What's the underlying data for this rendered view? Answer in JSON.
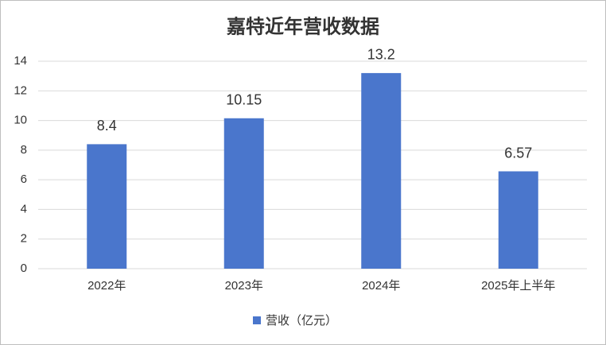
{
  "chart_data": {
    "type": "bar",
    "title": "嘉特近年营收数据",
    "categories": [
      "2022年",
      "2023年",
      "2024年",
      "2025年上半年"
    ],
    "series": [
      {
        "name": "营收（亿元）",
        "color": "#4a76cc",
        "values": [
          8.4,
          10.15,
          13.2,
          6.57
        ]
      }
    ],
    "ylim": [
      0,
      14
    ],
    "yticks": [
      0,
      2,
      4,
      6,
      8,
      10,
      12,
      14
    ],
    "grid": true,
    "legend": "bottom",
    "data_labels": true
  }
}
